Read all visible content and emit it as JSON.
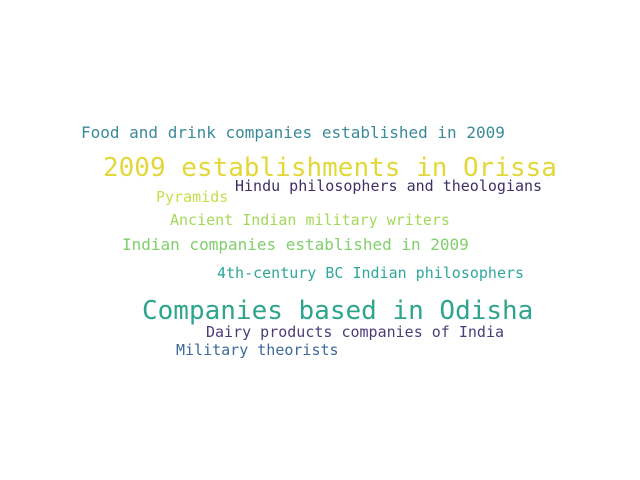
{
  "wordcloud": {
    "words": [
      {
        "text": "Food and drink companies established in 2009",
        "color": "#3a8a98"
      },
      {
        "text": "2009 establishments in Orissa",
        "color": "#e2d83a"
      },
      {
        "text": "Hindu philosophers and theologians",
        "color": "#3f2f66"
      },
      {
        "text": "Pyramids",
        "color": "#c8dd4a"
      },
      {
        "text": "Ancient Indian military writers",
        "color": "#a4d85a"
      },
      {
        "text": "Indian companies established in 2009",
        "color": "#7fcf6a"
      },
      {
        "text": "4th-century BC Indian philosophers",
        "color": "#2fa89a"
      },
      {
        "text": "Companies based in Odisha",
        "color": "#2fa58e"
      },
      {
        "text": "Dairy products companies of India",
        "color": "#4c3d78"
      },
      {
        "text": "Military theorists",
        "color": "#3c6a9a"
      }
    ]
  }
}
